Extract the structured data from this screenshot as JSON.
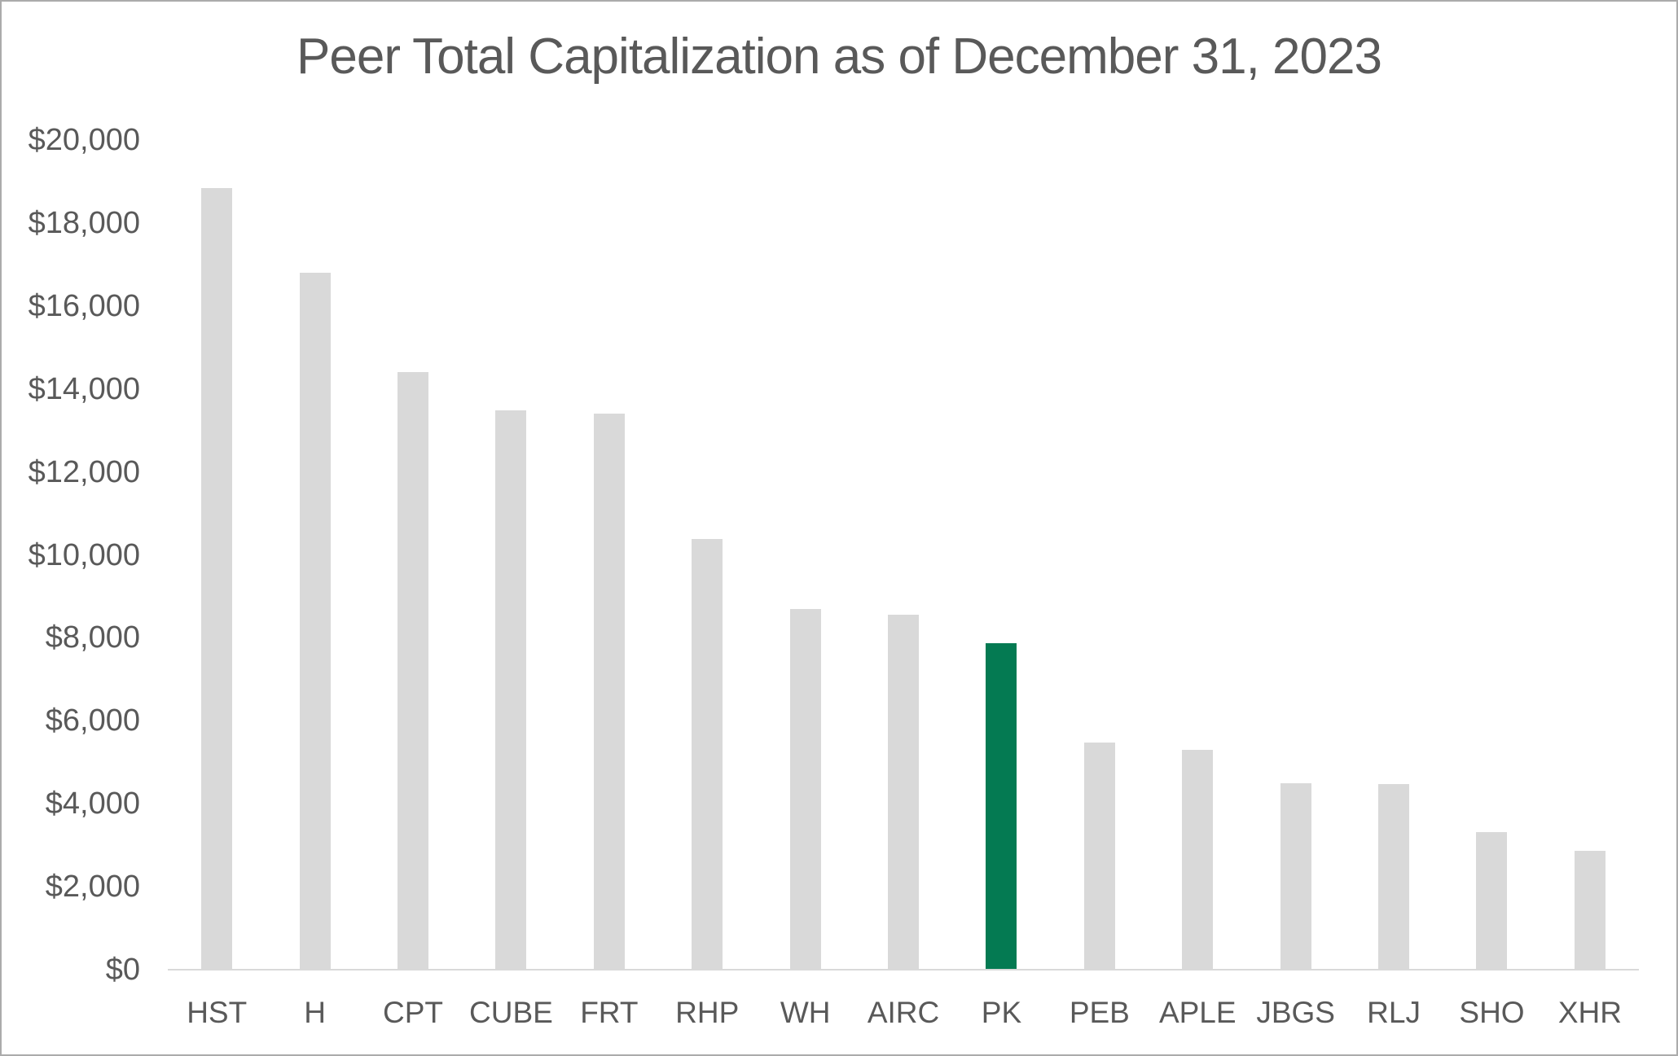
{
  "frame": {
    "border_color": "#ababab",
    "background_color": "#ffffff"
  },
  "chart_data": {
    "type": "bar",
    "title": "Peer Total Capitalization as of December 31, 2023",
    "categories": [
      "HST",
      "H",
      "CPT",
      "CUBE",
      "FRT",
      "RHP",
      "WH",
      "AIRC",
      "PK",
      "PEB",
      "APLE",
      "JBGS",
      "RLJ",
      "SHO",
      "XHR"
    ],
    "values": [
      18850,
      16800,
      14400,
      13475,
      13400,
      10375,
      8700,
      8550,
      7875,
      5475,
      5300,
      4500,
      4475,
      3325,
      2875
    ],
    "highlight_category": "PK",
    "bar_color": "#d9d9d9",
    "highlight_color": "#047a52",
    "text_color": "#595959",
    "axis_line_color": "#d9d9d9",
    "xlabel": "",
    "ylabel": "",
    "ylim": [
      0,
      20000
    ],
    "ytick_step": 2000,
    "yticks": [
      {
        "label": "$20,000",
        "value": 20000
      },
      {
        "label": "$18,000",
        "value": 18000
      },
      {
        "label": "$16,000",
        "value": 16000
      },
      {
        "label": "$14,000",
        "value": 14000
      },
      {
        "label": "$12,000",
        "value": 12000
      },
      {
        "label": "$10,000",
        "value": 10000
      },
      {
        "label": "$8,000",
        "value": 8000
      },
      {
        "label": "$6,000",
        "value": 6000
      },
      {
        "label": "$4,000",
        "value": 4000
      },
      {
        "label": "$2,000",
        "value": 2000
      },
      {
        "label": "$0",
        "value": 0
      }
    ],
    "grid": "off",
    "legend": "none"
  }
}
